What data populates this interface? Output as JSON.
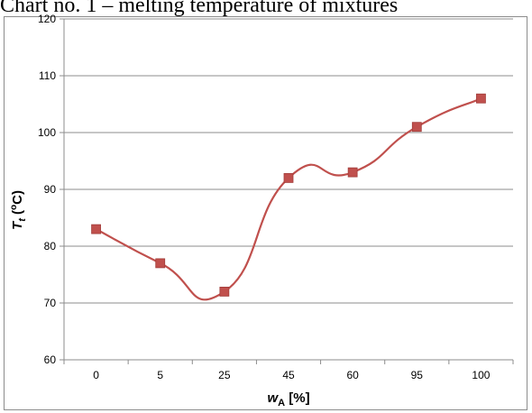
{
  "title": "Chart no. 1 – melting temperature of mixtures",
  "chart_data": {
    "type": "line",
    "categories": [
      "0",
      "5",
      "25",
      "45",
      "60",
      "95",
      "100"
    ],
    "series": [
      {
        "values": [
          83,
          77,
          72,
          92,
          93,
          101,
          106
        ]
      }
    ],
    "xlabel_main": "w",
    "xlabel_sub": "A",
    "xlabel_unit": " [%]",
    "ylabel_main": "T",
    "ylabel_sub": "t",
    "ylabel_unit_open": " (",
    "ylabel_unit_sup": "o",
    "ylabel_unit_close": "C)",
    "ylim": [
      60,
      120
    ],
    "yticks": [
      60,
      70,
      80,
      90,
      100,
      110,
      120
    ],
    "grid": "horizontal",
    "smooth": true,
    "line_color": "#c0504d",
    "marker_color": "#c0504d",
    "marker": "square"
  }
}
